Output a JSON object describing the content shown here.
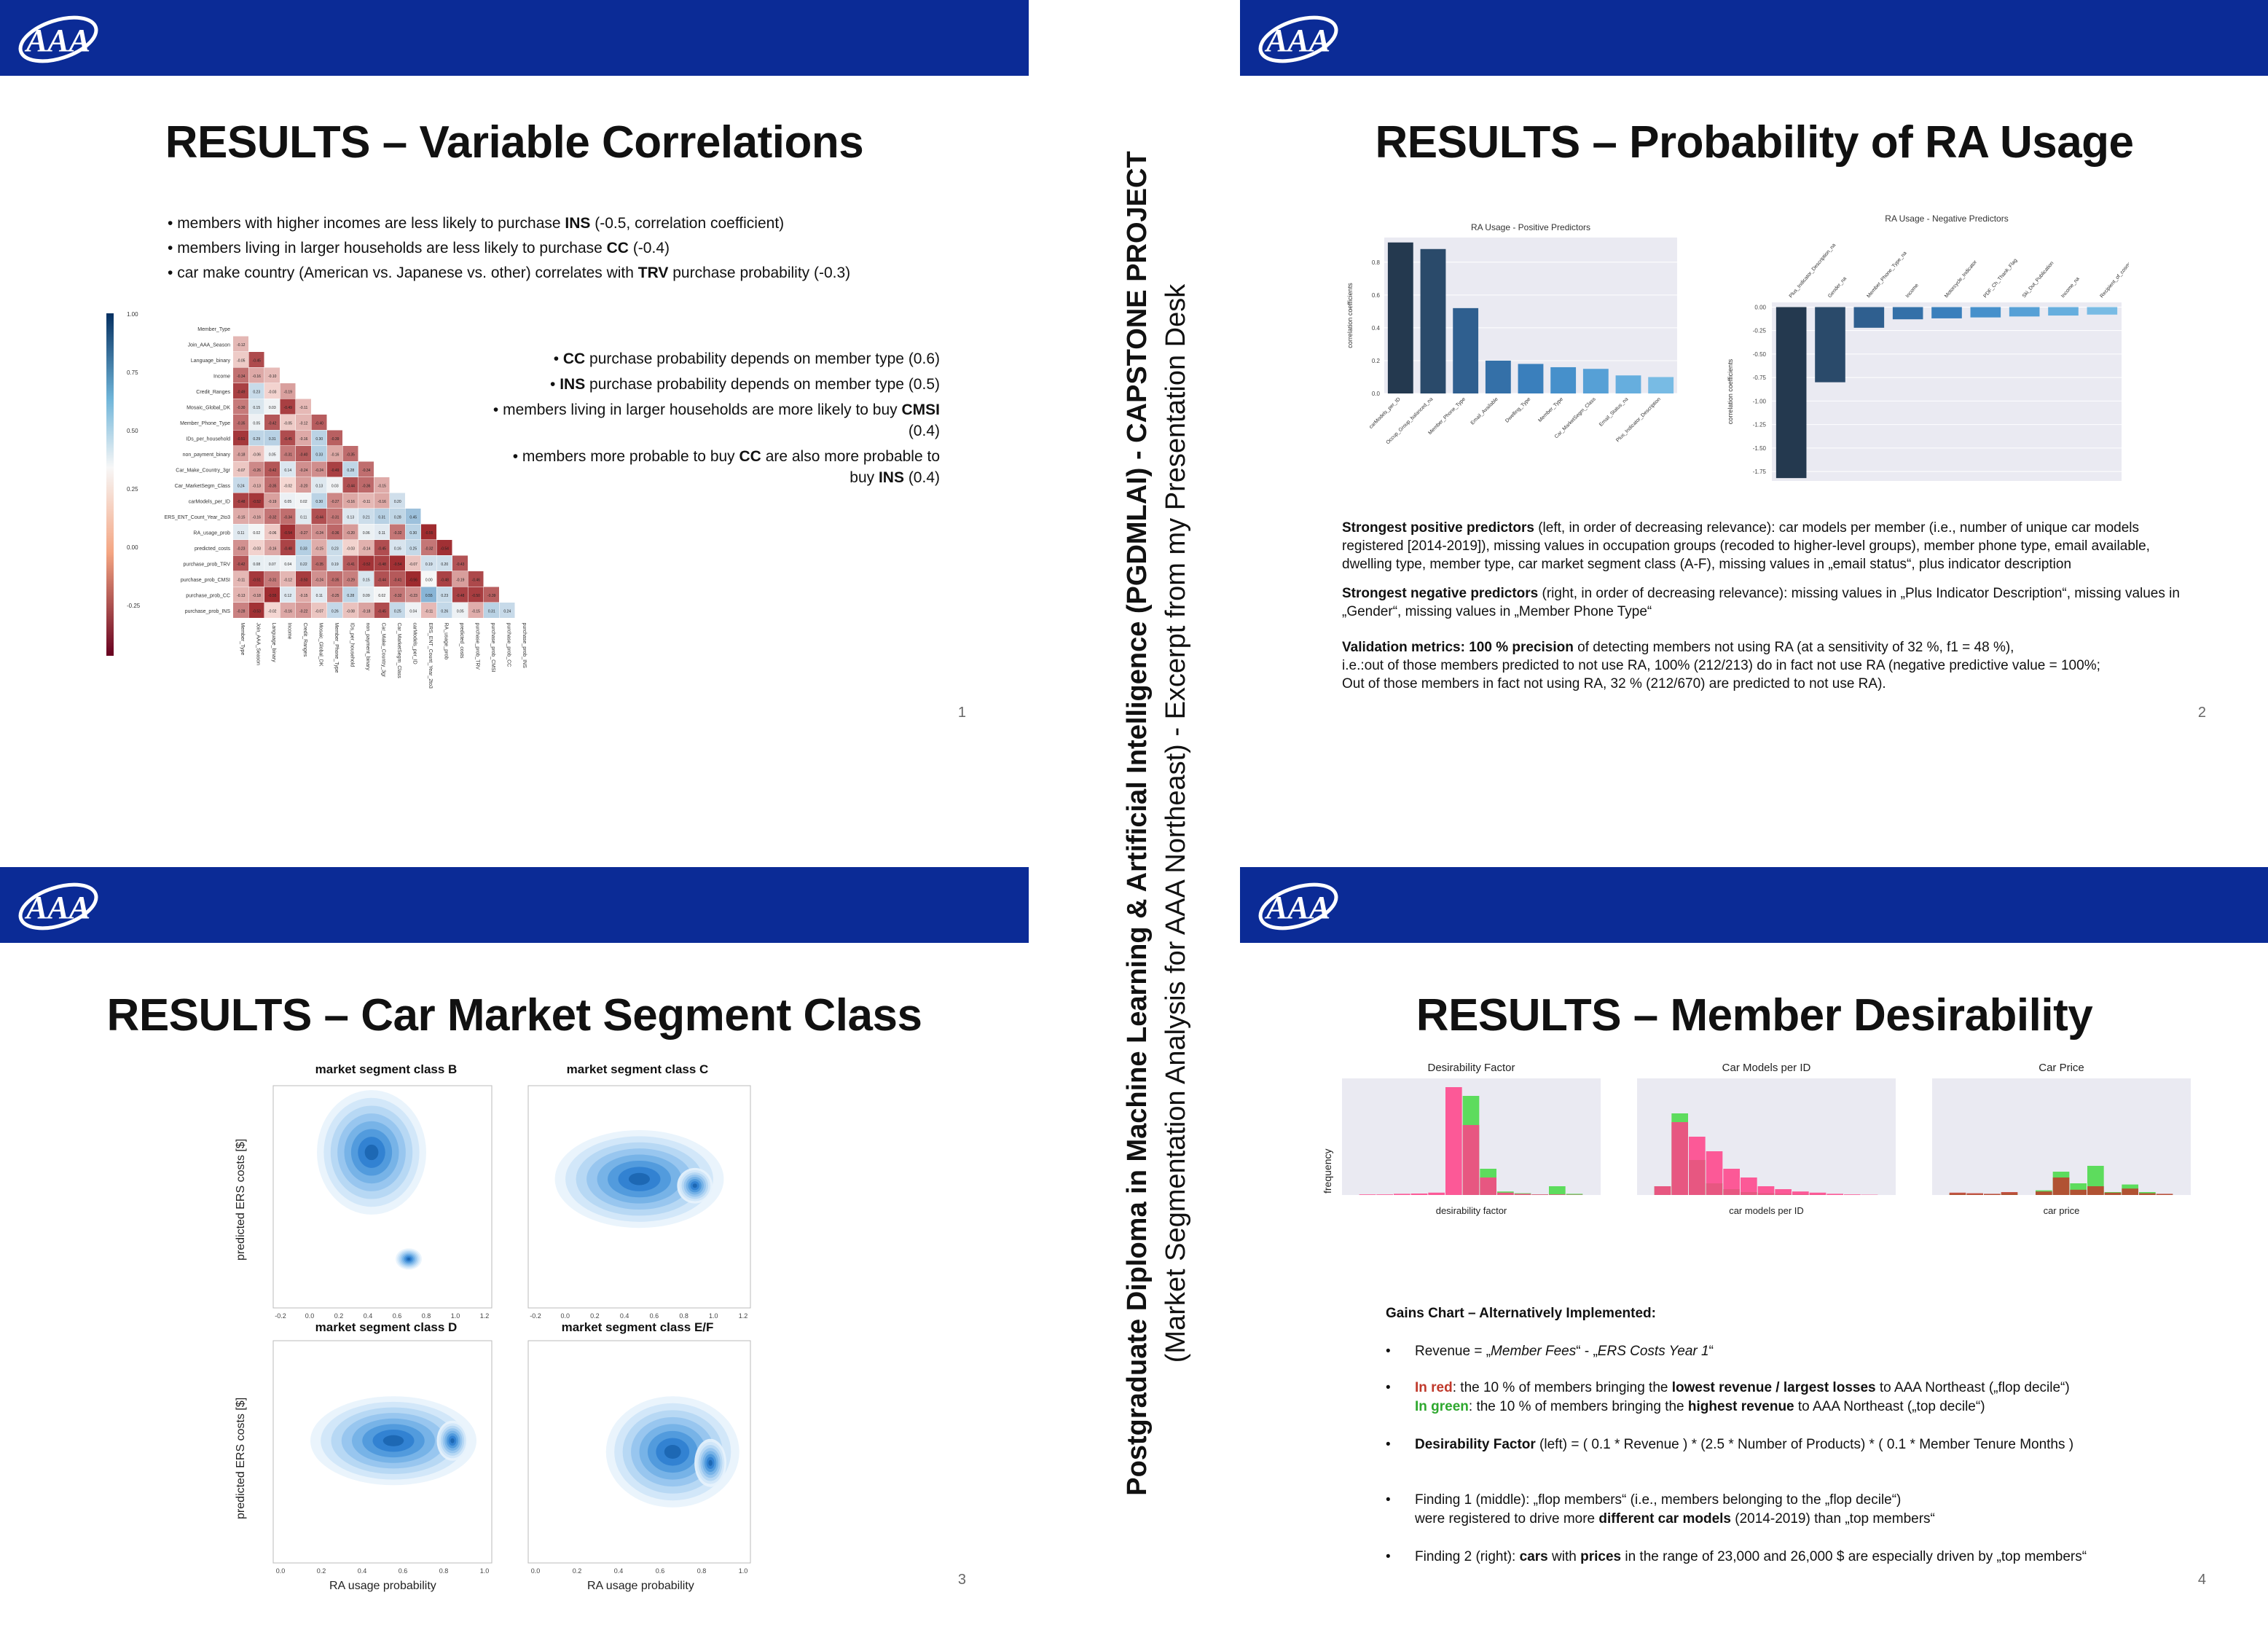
{
  "colors": {
    "banner": "#0b2b96",
    "corr_pos": "#2d6fb6",
    "corr_neg": "#b2182b",
    "bar_dark": "#24394f",
    "bar_mid": "#3a78b5",
    "bar_light": "#6aaedc",
    "kde": "#2f80d0",
    "hist_red": "#c0392b",
    "hist_green": "#5ddc5d",
    "hist_pink": "#ff3f87"
  },
  "icons": {
    "logo": "aaa-logo"
  },
  "vertical": {
    "line1": "Postgraduate Diploma in Machine Learning & Artificial Intelligence (PGDMLAI) - CAPSTONE PROJECT",
    "line2": "(Market Segmentation Analysis for AAA Northeast) - Excerpt from my Presentation Desk"
  },
  "slide1": {
    "title": "RESULTS – Variable Correlations",
    "page": "1",
    "bullets": [
      "members with higher incomes are less likely to purchase INS (-0.5, correlation coefficient)",
      "members living in larger households are less likely to purchase CC (-0.4)",
      "car make country (American vs. Japanese vs. other) correlates with TRV purchase probability (-0.3)"
    ],
    "right_bullets": [
      "CC purchase probability depends on member type (0.6)",
      "INS purchase probability depends on member type (0.5)",
      "members living in larger households are more likely to buy CMSI (0.4)",
      "members more probable to buy CC are also more probable to buy INS (0.4)"
    ],
    "heatmap_vars": [
      "Member_Type",
      "Join_AAA_Season",
      "Language_binary",
      "Income",
      "Credit_Ranges",
      "Mosaic_Global_DK",
      "Member_Phone_Type",
      "IDs_per_household",
      "non_payment_binary",
      "Car_Make_Country_3gr",
      "Car_MarketSegm_Class",
      "carModels_per_ID",
      "ERS_ENT_Count_Year_2to3",
      "RA_usage_prob",
      "predicted_costs",
      "purchase_prob_TRV",
      "purchase_prob_CMSI",
      "purchase_prob_CC",
      "purchase_prob_INS"
    ],
    "colorbar_ticks": [
      "1.00",
      "0.75",
      "0.50",
      "0.25",
      "0.00",
      "-0.25"
    ]
  },
  "slide2": {
    "title": "RESULTS – Probability of RA Usage",
    "page": "2",
    "chart_data": [
      {
        "type": "bar",
        "title": "RA Usage - Positive Predictors",
        "ylabel": "correlation coefficients",
        "categories": [
          "carModels_per_ID",
          "Occup_Group_balanced_na",
          "Member_Phone_Type",
          "Email_Available",
          "Dwelling_Type",
          "Member_Type",
          "Car_MarketSegm_Class",
          "Email_Status_na",
          "Plus_Indicator_Description"
        ],
        "values": [
          0.92,
          0.88,
          0.52,
          0.2,
          0.18,
          0.16,
          0.15,
          0.11,
          0.1
        ],
        "ylim": [
          0,
          0.95
        ],
        "yticks": [
          "0.0",
          "0.2",
          "0.4",
          "0.6",
          "0.8"
        ]
      },
      {
        "type": "bar",
        "title": "RA Usage - Negative Predictors",
        "ylabel": "correlation coefficients",
        "categories": [
          "Plus_Indicator_Description_na",
          "Gender_na",
          "Member_Phone_Type_na",
          "Income",
          "Motorcycle_Indicator",
          "PDF_Ch_Thank_Flag",
          "Ski_Dut_Publication",
          "Income_na",
          "Recipient_of_cosmos"
        ],
        "values": [
          -1.82,
          -0.8,
          -0.22,
          -0.13,
          -0.12,
          -0.11,
          -0.1,
          -0.09,
          -0.08
        ],
        "ylim": [
          -1.85,
          0.05
        ],
        "yticks": [
          "0.00",
          "-0.25",
          "-0.50",
          "-0.75",
          "-1.00",
          "-1.25",
          "-1.50",
          "-1.75"
        ]
      }
    ],
    "p1_bold": "Strongest positive predictors",
    "p1_text": " (left, in order of decreasing relevance): car models per member (i.e., number of unique car models registered [2014-2019]), missing values in occupation groups (recoded to higher-level groups), member phone type, email available, dwelling type, member type, car market segment class (A-F), missing values in „email status“, plus indicator description",
    "p2_bold": "Strongest negative predictors",
    "p2_text": " (right, in order of decreasing relevance): missing values in „Plus Indicator Description“, missing values in „Gender“, missing values in „Member Phone Type“",
    "p3_bold": "Validation metrics:",
    "p3_bold2": " 100 % precision",
    "p3_text": " of detecting members not using RA (at a sensitivity of 32 %, f1 = 48 %),",
    "p3_line2": "i.e.:out of those members predicted to not use RA, 100%  (212/213) do in fact not use RA (negative predictive value = 100%;",
    "p3_line3": "Out of those members in fact not using RA, 32 % (212/670) are predicted to not use RA)."
  },
  "slide3": {
    "title": "RESULTS – Car Market Segment Class",
    "page": "3",
    "panels": [
      "market segment class B",
      "market segment class C",
      "market segment class D",
      "market segment class E/F"
    ],
    "ylabel": "predicted ERS costs [$]",
    "xlabel": "RA usage probability",
    "xticks_top": [
      "-0.2",
      "0.0",
      "0.2",
      "0.4",
      "0.6",
      "0.8",
      "1.0",
      "1.2"
    ],
    "xticks_bottom": [
      "0.0",
      "0.2",
      "0.4",
      "0.6",
      "0.8",
      "1.0"
    ]
  },
  "slide4": {
    "title": "RESULTS – Member Desirability",
    "page": "4",
    "hists": [
      {
        "title": "Desirability Factor",
        "xlabel": "desirability factor"
      },
      {
        "title": "Car Models per ID",
        "xlabel": "car models per ID"
      },
      {
        "title": "Car Price",
        "xlabel": "car price"
      }
    ],
    "ylabel": "frequency",
    "gains_title": "Gains Chart – Alternatively Implemented:",
    "items": [
      {
        "pre": "Revenue = „",
        "em": "Member Fees",
        "mid": "“ - „",
        "em2": "ERS Costs Year 1",
        "post": "“"
      },
      {
        "line1_red": "In red",
        "line1_a": ": the 10 % of members bringing the ",
        "line1_b": "lowest revenue / largest losses",
        "line1_c": " to AAA Northeast („flop decile“)",
        "line2_green": "In green",
        "line2_a": ": the 10 % of members bringing the ",
        "line2_b": "highest revenue",
        "line2_c": " to AAA Northeast („top decile“)"
      },
      {
        "bold": "Desirability Factor",
        "text": " (left) = ( 0.1 * Revenue  ) * (2.5 * Number of Products) * ( 0.1 * Member Tenure Months )"
      },
      {
        "line1": "Finding 1 (middle): „flop members“ (i.e., members belonging to the „flop decile“)",
        "line2_a": "were registered to drive more ",
        "line2_b": "different car models",
        "line2_c": " (2014-2019) than „top members“"
      },
      {
        "a": "Finding 2 (right): ",
        "b": "cars",
        "c": " with ",
        "d": "prices",
        "e": " in the range of 23,000 and 26,000 $ are especially driven by „top members“"
      }
    ]
  }
}
